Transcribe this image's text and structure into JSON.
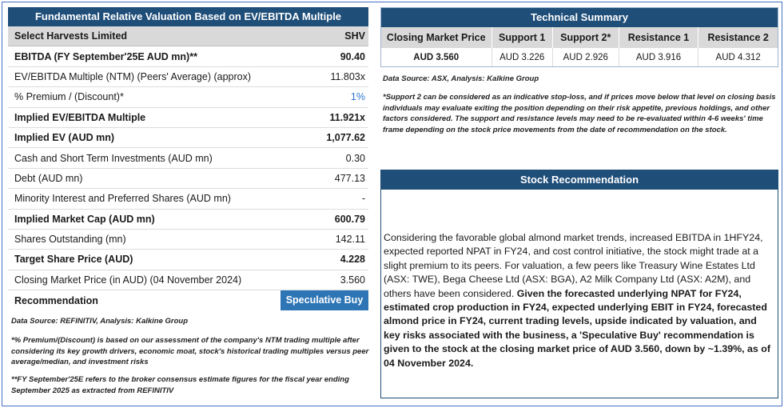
{
  "valuation": {
    "title": "Fundamental Relative Valuation Based on EV/EBITDA Multiple",
    "company": "Select Harvests Limited",
    "ticker": "SHV",
    "rows": [
      {
        "label": "EBITDA (FY September'25E AUD mn)**",
        "value": "90.40"
      },
      {
        "label": "EV/EBITDA Multiple (NTM)  (Peers' Average) (approx)",
        "value": "11.803x"
      },
      {
        "label": "% Premium / (Discount)*",
        "value": "1%"
      },
      {
        "label": "Implied EV/EBITDA Multiple",
        "value": "11.921x"
      },
      {
        "label": "Implied EV (AUD mn)",
        "value": "1,077.62"
      },
      {
        "label": "Cash and Short Term Investments (AUD mn)",
        "value": "0.30"
      },
      {
        "label": "Debt (AUD mn)",
        "value": "477.13"
      },
      {
        "label": "Minority Interest and Preferred Shares (AUD mn)",
        "value": "-"
      },
      {
        "label": "Implied Market Cap (AUD mn)",
        "value": "600.79"
      },
      {
        "label": "Shares Outstanding (mn)",
        "value": "142.11"
      },
      {
        "label": "Target Share Price (AUD)",
        "value": "4.228"
      },
      {
        "label": "Closing Market Price (in AUD) (04 November 2024)",
        "value": "3.560"
      }
    ],
    "recommendation_label": "Recommendation",
    "recommendation_value": "Speculative Buy",
    "source": "Data Source: REFINITIV, Analysis: Kalkine Group",
    "note1": "*% Premium/(Discount) is based on our assessment of the company's NTM trading multiple after considering its key growth drivers, economic moat, stock's historical trading multiples versus peer average/median, and investment risks",
    "note2": "**FY September'25E refers to the broker consensus estimate figures for the fiscal year ending September 2025  as extracted from REFINITIV"
  },
  "technical": {
    "title": "Technical Summary",
    "headers": [
      "Closing Market Price",
      "Support 1",
      "Support 2*",
      "Resistance 1",
      "Resistance 2"
    ],
    "values": [
      "AUD 3.560",
      "AUD 3.226",
      "AUD 2.926",
      "AUD 3.916",
      "AUD 4.312"
    ],
    "source": "Data Source: ASX, Analysis: Kalkine Group",
    "note": "*Support 2 can be considered as an indicative stop-loss, and if prices move below that level on closing basis individuals may evaluate exiting the position depending on their risk appetite, previous holdings, and other factors considered. The support and resistance levels may need to be re-evaluated within 4-6 weeks' time frame depending on the stock price movements from the date of recommendation on the stock."
  },
  "recommendation": {
    "title": "Stock Recommendation",
    "text_plain": "Considering the favorable global almond market trends, increased EBITDA in 1HFY24, expected reported NPAT in FY24, and cost control initiative, the stock might trade at a slight premium to its peers. For valuation, a few peers like Treasury Wine Estates Ltd (ASX: TWE), Bega Cheese Ltd (ASX: BGA), A2 Milk Company Ltd (ASX: A2M), and others have been considered. ",
    "text_bold": "Given the forecasted underlying NPAT for FY24, estimated crop production in FY24, expected underlying EBIT in FY24, forecasted almond price in FY24, current trading levels, upside indicated by valuation, and key risks associated with the business, a 'Speculative Buy' recommendation is given to the stock at the closing market price of AUD 3.560, down by ~1.39%, as of 04 November 2024."
  },
  "colors": {
    "header_navy": "#1f4e79",
    "accent_blue": "#2e75b6",
    "frame_blue": "#4472c4"
  }
}
